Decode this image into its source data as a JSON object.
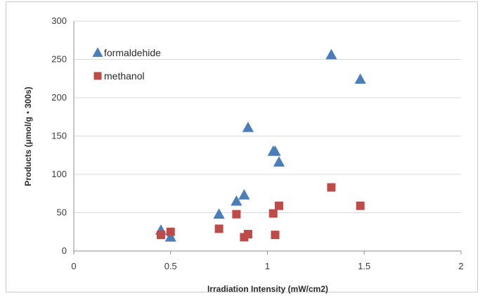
{
  "chart_data": {
    "type": "scatter",
    "xlabel": "Irradiation Intensity (mW/cm2)",
    "ylabel": "Products (μmol/g・300s)",
    "xlim": [
      0,
      2
    ],
    "ylim": [
      0,
      300
    ],
    "xticks": [
      0,
      0.5,
      1,
      1.5,
      2
    ],
    "xtick_labels": [
      "0",
      "0.5",
      "1",
      "1.5",
      "2"
    ],
    "yticks": [
      0,
      50,
      100,
      150,
      200,
      250,
      300
    ],
    "ytick_labels": [
      "0",
      "50",
      "100",
      "150",
      "200",
      "250",
      "300"
    ],
    "grid": "horizontal",
    "legend_position": "top-left",
    "series": [
      {
        "name": "formaldehide",
        "marker": "triangle",
        "color": "#4a7ebb",
        "points": [
          [
            0.45,
            27
          ],
          [
            0.5,
            18
          ],
          [
            0.75,
            48
          ],
          [
            0.84,
            65
          ],
          [
            0.88,
            73
          ],
          [
            0.9,
            161
          ],
          [
            1.03,
            130
          ],
          [
            1.04,
            130
          ],
          [
            1.06,
            116
          ],
          [
            1.33,
            256
          ],
          [
            1.48,
            224
          ]
        ]
      },
      {
        "name": "methanol",
        "marker": "square",
        "color": "#be4b48",
        "points": [
          [
            0.45,
            21
          ],
          [
            0.5,
            25
          ],
          [
            0.75,
            29
          ],
          [
            0.84,
            48
          ],
          [
            0.88,
            18
          ],
          [
            0.9,
            22
          ],
          [
            1.03,
            49
          ],
          [
            1.04,
            21
          ],
          [
            1.06,
            59
          ],
          [
            1.33,
            83
          ],
          [
            1.48,
            59
          ]
        ]
      }
    ]
  }
}
